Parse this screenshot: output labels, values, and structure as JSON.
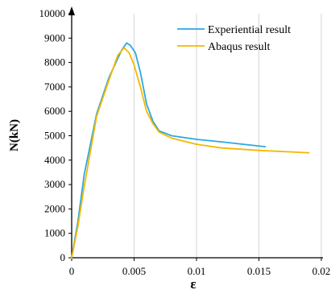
{
  "chart_data": {
    "type": "line",
    "title": "",
    "xlabel": "ε",
    "ylabel": "N(kN)",
    "xlim": [
      0,
      0.02
    ],
    "ylim": [
      0,
      10000
    ],
    "x_ticks": [
      0,
      0.005,
      0.01,
      0.015,
      0.02
    ],
    "x_tick_labels": [
      "0",
      "0.005",
      "0.01",
      "0.015",
      "0.02"
    ],
    "y_ticks": [
      0,
      1000,
      2000,
      3000,
      4000,
      5000,
      6000,
      7000,
      8000,
      9000,
      10000
    ],
    "y_tick_labels": [
      "0",
      "1000",
      "2000",
      "3000",
      "4000",
      "5000",
      "6000",
      "7000",
      "8000",
      "9000",
      "10000"
    ],
    "grid": "vertical",
    "legend_position": "top-right",
    "series": [
      {
        "name": "Experiential result",
        "color": "#2aa9e0",
        "x": [
          0,
          0.0005,
          0.001,
          0.002,
          0.003,
          0.004,
          0.0044,
          0.0047,
          0.0051,
          0.0055,
          0.006,
          0.0065,
          0.007,
          0.008,
          0.01,
          0.012,
          0.0155
        ],
        "y": [
          0,
          1500,
          3400,
          5900,
          7400,
          8500,
          8800,
          8700,
          8400,
          7600,
          6300,
          5600,
          5200,
          5000,
          4850,
          4750,
          4550
        ]
      },
      {
        "name": "Abaqus result",
        "color": "#f5b800",
        "x": [
          0,
          0.0005,
          0.001,
          0.002,
          0.003,
          0.0037,
          0.0042,
          0.0046,
          0.005,
          0.0055,
          0.006,
          0.0065,
          0.007,
          0.008,
          0.01,
          0.012,
          0.015,
          0.019
        ],
        "y": [
          0,
          1300,
          2900,
          5800,
          7300,
          8300,
          8600,
          8400,
          7900,
          7000,
          6000,
          5500,
          5150,
          4900,
          4650,
          4500,
          4400,
          4300
        ]
      }
    ]
  }
}
